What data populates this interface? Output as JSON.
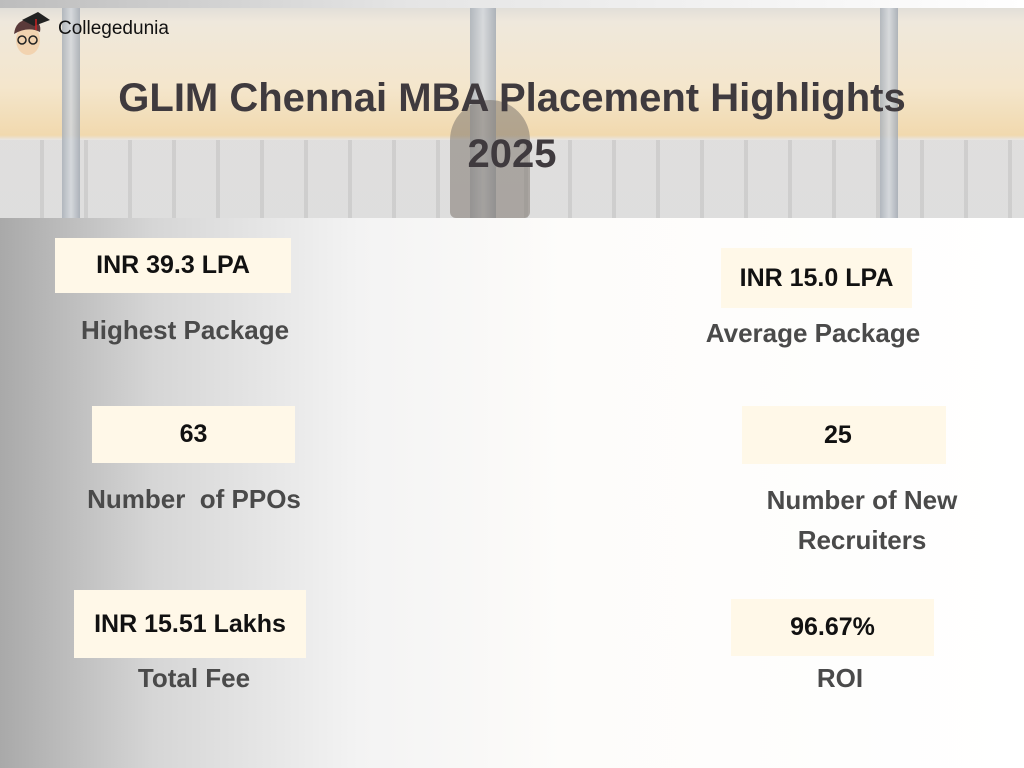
{
  "brand": {
    "name": "Collegedunia"
  },
  "title": {
    "line1": "GLIM Chennai MBA Placement Highlights",
    "line2": "2025"
  },
  "stats": [
    {
      "value": "INR  39.3 LPA",
      "label": "Highest Package"
    },
    {
      "value": "INR  15.0 LPA",
      "label": "Average Package"
    },
    {
      "value": "63",
      "label": "Number  of PPOs"
    },
    {
      "value": "25",
      "label_line1": "Number of New",
      "label_line2": "Recruiters"
    },
    {
      "value": "INR 15.51 Lakhs",
      "label": "Total Fee"
    },
    {
      "value": "96.67%",
      "label": "ROI"
    }
  ],
  "colors": {
    "box": "#fff8e8",
    "title": "#3f3a3e",
    "label": "#4a4a4a"
  }
}
